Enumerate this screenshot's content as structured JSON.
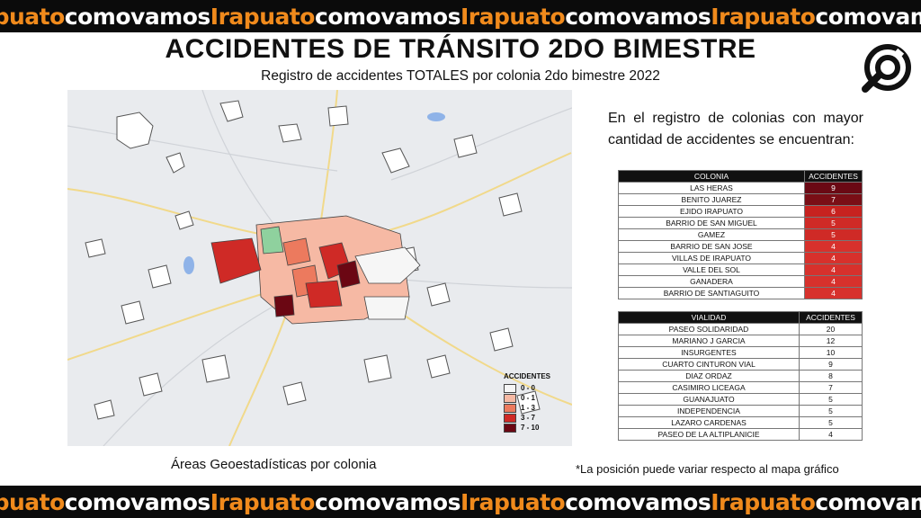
{
  "banner": {
    "part_a": "Irapuato",
    "part_b": "comovamos"
  },
  "header": {
    "title": "ACCIDENTES DE TRÁNSITO 2DO BIMESTRE",
    "subtitle": "Registro de accidentes TOTALES por colonia 2do bimestre 2022"
  },
  "logo": {
    "icon": "magnifier-logo-icon"
  },
  "map": {
    "legend_title": "ACCIDENTES",
    "legend": [
      {
        "label": "0 - 0",
        "color": "#f6f6f6"
      },
      {
        "label": "0 - 1",
        "color": "#f6b9a4"
      },
      {
        "label": "1 - 3",
        "color": "#ec7a5e"
      },
      {
        "label": "3 - 7",
        "color": "#cf2a26"
      },
      {
        "label": "7 - 10",
        "color": "#6b0713"
      }
    ],
    "caption": "Áreas Geoestadísticas por colonia"
  },
  "intro_text": "En el registro de colonias con mayor cantidad de accidentes se encuentran:",
  "colonias": {
    "headers": [
      "COLONIA",
      "ACCIDENTES"
    ],
    "rows": [
      {
        "name": "LAS HERAS",
        "value": "9",
        "color": "#6a0914"
      },
      {
        "name": "BENITO JUAREZ",
        "value": "7",
        "color": "#7a0e16"
      },
      {
        "name": "EJIDO IRAPUATO",
        "value": "6",
        "color": "#c7221f"
      },
      {
        "name": "BARRIO DE SAN MIGUEL",
        "value": "5",
        "color": "#cf2a26"
      },
      {
        "name": "GAMEZ",
        "value": "5",
        "color": "#cf2a26"
      },
      {
        "name": "BARRIO DE SAN JOSE",
        "value": "4",
        "color": "#d7312c"
      },
      {
        "name": "VILLAS DE IRAPUATO",
        "value": "4",
        "color": "#d7312c"
      },
      {
        "name": "VALLE DEL SOL",
        "value": "4",
        "color": "#d7312c"
      },
      {
        "name": "GANADERA",
        "value": "4",
        "color": "#d7312c"
      },
      {
        "name": "BARRIO DE SANTIAGUITO",
        "value": "4",
        "color": "#d7312c"
      }
    ]
  },
  "vialidades": {
    "headers": [
      "VIALIDAD",
      "ACCIDENTES"
    ],
    "rows": [
      {
        "name": "PASEO SOLIDARIDAD",
        "value": "20"
      },
      {
        "name": "MARIANO J GARCIA",
        "value": "12"
      },
      {
        "name": "INSURGENTES",
        "value": "10"
      },
      {
        "name": "CUARTO CINTURON VIAL",
        "value": "9"
      },
      {
        "name": "DIAZ ORDAZ",
        "value": "8"
      },
      {
        "name": "CASIMIRO LICEAGA",
        "value": "7"
      },
      {
        "name": "GUANAJUATO",
        "value": "5"
      },
      {
        "name": "INDEPENDENCIA",
        "value": "5"
      },
      {
        "name": "LAZARO CARDENAS",
        "value": "5"
      },
      {
        "name": "PASEO DE LA ALTIPLANICIE",
        "value": "4"
      }
    ]
  },
  "note": "*La posición puede variar respecto al mapa gráfico"
}
